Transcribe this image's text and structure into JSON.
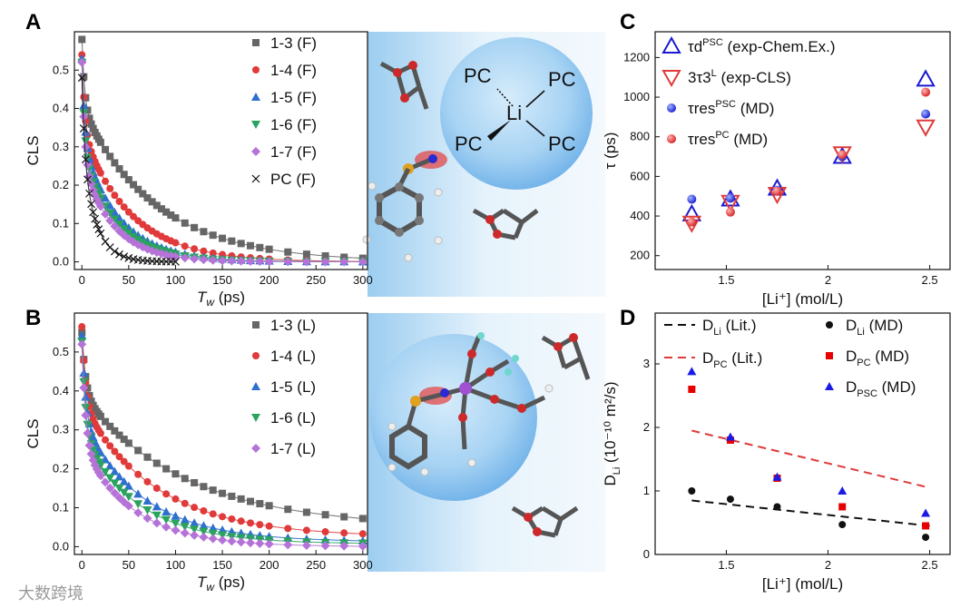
{
  "figure": {
    "watermark": "大数跨境",
    "colors": {
      "gray": "#666666",
      "red": "#e03a3a",
      "blue": "#2e6fd0",
      "green": "#2aa35e",
      "purple": "#b573d8",
      "black": "#111111",
      "navy": "#1a1ad0",
      "sphere": "#8ec3ee"
    }
  },
  "panel_A": {
    "label": "A"
  },
  "panel_B": {
    "label": "B"
  },
  "panel_C": {
    "label": "C"
  },
  "panel_D": {
    "label": "D"
  },
  "molecule_top": {
    "center": "Li",
    "ligands": [
      "PC",
      "PC",
      "PC",
      "PC"
    ]
  },
  "chart_data": [
    {
      "id": "A",
      "type": "scatter",
      "xlabel": "T_w (ps)",
      "ylabel": "CLS",
      "xlim": [
        -8,
        305
      ],
      "ylim": [
        -0.02,
        0.6
      ],
      "xticks": [
        0,
        50,
        100,
        150,
        200,
        250,
        300
      ],
      "yticks": [
        0.0,
        0.1,
        0.2,
        0.3,
        0.4,
        0.5
      ],
      "series": [
        {
          "name": "1-3 (F)",
          "marker": "square",
          "color": "#666666",
          "A1": 0.18,
          "t1": 3,
          "A2": 0.4,
          "t2": 80,
          "c": 0.0
        },
        {
          "name": "1-4 (F)",
          "marker": "circle",
          "color": "#e03a3a",
          "A1": 0.2,
          "t1": 3,
          "A2": 0.34,
          "t2": 52,
          "c": 0.0
        },
        {
          "name": "1-5 (F)",
          "marker": "triangle",
          "color": "#2e6fd0",
          "A1": 0.22,
          "t1": 3,
          "A2": 0.31,
          "t2": 40,
          "c": 0.0
        },
        {
          "name": "1-6 (F)",
          "marker": "triangle-down",
          "color": "#2aa35e",
          "A1": 0.24,
          "t1": 3,
          "A2": 0.28,
          "t2": 38,
          "c": 0.0
        },
        {
          "name": "1-7 (F)",
          "marker": "diamond",
          "color": "#b573d8",
          "A1": 0.26,
          "t1": 3,
          "A2": 0.26,
          "t2": 34,
          "c": 0.0
        },
        {
          "name": "PC (F)",
          "marker": "cross",
          "color": "#111111",
          "A1": 0.2,
          "t1": 3,
          "A2": 0.28,
          "t2": 15,
          "c": 0.0
        }
      ]
    },
    {
      "id": "B",
      "type": "scatter",
      "xlabel": "T_w (ps)",
      "ylabel": "CLS",
      "xlim": [
        -8,
        305
      ],
      "ylim": [
        -0.02,
        0.6
      ],
      "xticks": [
        0,
        50,
        100,
        150,
        200,
        250,
        300
      ],
      "yticks": [
        0.0,
        0.1,
        0.2,
        0.3,
        0.4,
        0.5
      ],
      "series": [
        {
          "name": "1-3 (L)",
          "marker": "square",
          "color": "#666666",
          "A1": 0.16,
          "t1": 4,
          "A2": 0.34,
          "t2": 110,
          "c": 0.05
        },
        {
          "name": "1-4 (L)",
          "marker": "circle",
          "color": "#e03a3a",
          "A1": 0.2,
          "t1": 4,
          "A2": 0.34,
          "t2": 80,
          "c": 0.025
        },
        {
          "name": "1-5 (L)",
          "marker": "triangle",
          "color": "#2e6fd0",
          "A1": 0.22,
          "t1": 4,
          "A2": 0.31,
          "t2": 65,
          "c": 0.012
        },
        {
          "name": "1-6 (L)",
          "marker": "triangle-down",
          "color": "#2aa35e",
          "A1": 0.24,
          "t1": 4,
          "A2": 0.28,
          "t2": 60,
          "c": 0.007
        },
        {
          "name": "1-7 (L)",
          "marker": "diamond",
          "color": "#b573d8",
          "A1": 0.26,
          "t1": 4,
          "A2": 0.26,
          "t2": 55,
          "c": 0.0
        }
      ]
    },
    {
      "id": "C",
      "type": "scatter",
      "xlabel": "[Li⁺] (mol/L)",
      "ylabel": "τ (ps)",
      "xlim": [
        1.15,
        2.6
      ],
      "ylim": [
        130,
        1330
      ],
      "xticks": [
        1.5,
        2.0,
        2.5
      ],
      "yticks": [
        200,
        400,
        600,
        800,
        1000,
        1200
      ],
      "series": [
        {
          "name": "τd^PSC (exp-Chem.Ex.)",
          "marker": "open-triangle",
          "color": "#1a1ad0",
          "x": [
            1.33,
            1.52,
            1.75,
            2.07,
            2.48
          ],
          "y": [
            410,
            485,
            540,
            700,
            1090
          ]
        },
        {
          "name": "3τ3^L (exp-CLS)",
          "marker": "open-triangle-down",
          "color": "#e03a3a",
          "x": [
            1.33,
            1.52,
            1.75,
            2.07,
            2.48
          ],
          "y": [
            365,
            470,
            510,
            715,
            850
          ]
        },
        {
          "name": "τres^PSC (MD)",
          "marker": "ball",
          "color": "#1a1ad0",
          "x": [
            1.33,
            1.52,
            1.75,
            2.07,
            2.48
          ],
          "y": [
            485,
            490,
            530,
            700,
            915
          ]
        },
        {
          "name": "τres^PC (MD)",
          "marker": "ball",
          "color": "#e03a3a",
          "x": [
            1.33,
            1.52,
            1.75,
            2.07,
            2.48
          ],
          "y": [
            370,
            420,
            525,
            710,
            1025
          ]
        }
      ]
    },
    {
      "id": "D",
      "type": "scatter",
      "xlabel": "[Li⁺] (mol/L)",
      "ylabel": "D_Li (10⁻¹⁰ m²/s)",
      "xlim": [
        1.15,
        2.6
      ],
      "ylim": [
        0,
        3.8
      ],
      "xticks": [
        1.5,
        2.0,
        2.5
      ],
      "yticks": [
        0,
        1,
        2,
        3
      ],
      "lines": [
        {
          "name": "D_Li (Lit.)",
          "color": "#111111",
          "x": [
            1.33,
            2.5
          ],
          "y": [
            0.85,
            0.45
          ]
        },
        {
          "name": "D_PC (Lit.)",
          "color": "#e03a3a",
          "x": [
            1.33,
            2.5
          ],
          "y": [
            1.95,
            1.05
          ]
        }
      ],
      "series": [
        {
          "name": "D_Li (MD)",
          "marker": "circle",
          "color": "#111111",
          "x": [
            1.33,
            1.52,
            1.75,
            2.07,
            2.48
          ],
          "y": [
            1.0,
            0.87,
            0.75,
            0.47,
            0.27
          ]
        },
        {
          "name": "D_PC (MD)",
          "marker": "square",
          "color": "#e60000",
          "x": [
            1.33,
            1.52,
            1.75,
            2.07,
            2.48
          ],
          "y": [
            2.6,
            1.8,
            1.2,
            0.75,
            0.45
          ]
        },
        {
          "name": "D_PSC (MD)",
          "marker": "triangle",
          "color": "#1a1ae6",
          "x": [
            1.33,
            1.52,
            1.75,
            2.07,
            2.48
          ],
          "y": [
            2.88,
            1.85,
            1.22,
            1.0,
            0.65
          ]
        }
      ]
    }
  ]
}
